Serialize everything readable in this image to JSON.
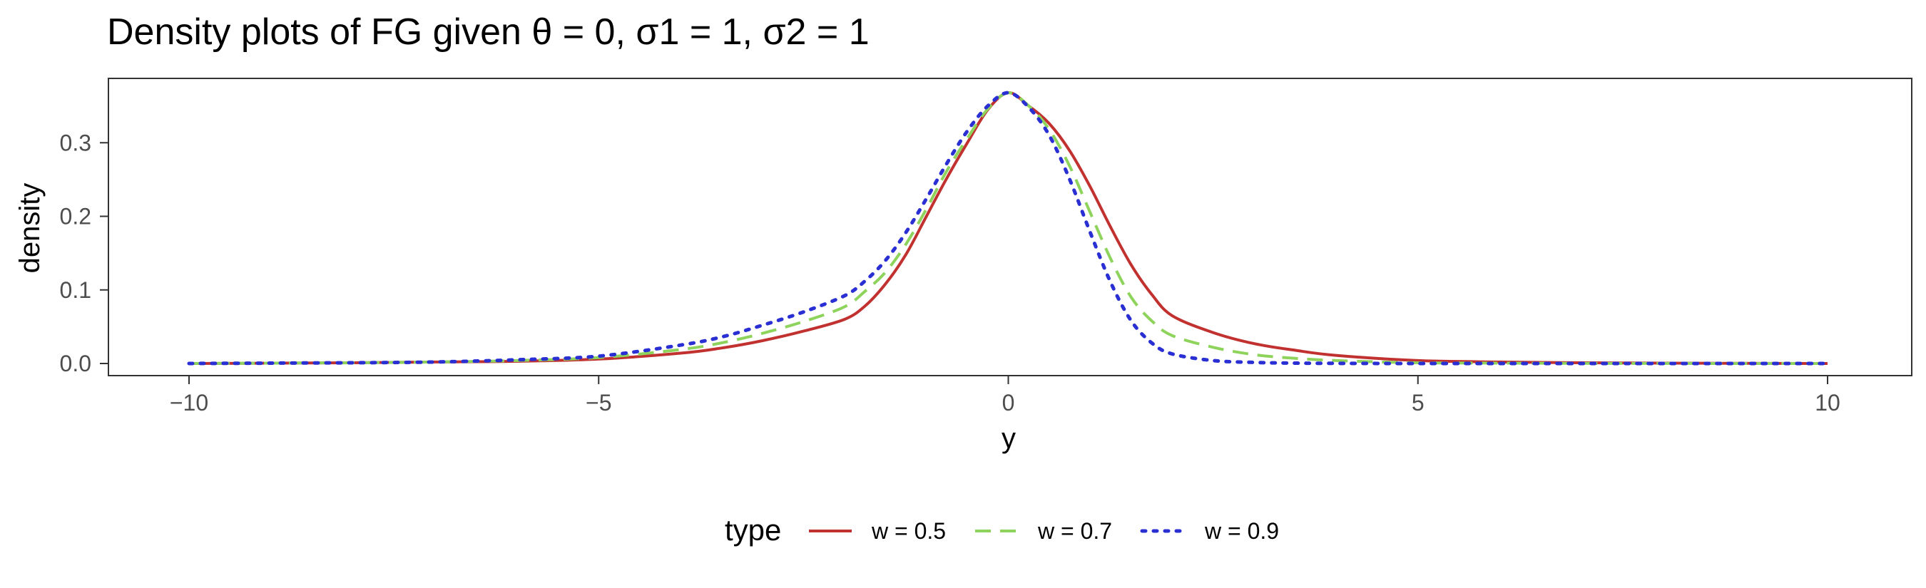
{
  "chart_data": {
    "type": "line",
    "title": "Density plots of FG given θ = 0, σ1 = 1, σ2 = 1",
    "xlabel": "y",
    "ylabel": "density",
    "xlim": [
      -10,
      10
    ],
    "ylim": [
      0,
      0.37
    ],
    "x_ticks": [
      -10,
      -5,
      0,
      5,
      10
    ],
    "x_tick_labels": [
      "−10",
      "−5",
      "0",
      "5",
      "10"
    ],
    "y_ticks": [
      0.0,
      0.1,
      0.2,
      0.3
    ],
    "y_tick_labels": [
      "0.0",
      "0.1",
      "0.2",
      "0.3"
    ],
    "grid": false,
    "legend": {
      "title": "type",
      "position": "bottom"
    },
    "x": [
      -10,
      -9,
      -8,
      -7,
      -6,
      -5,
      -4,
      -3.5,
      -3,
      -2.5,
      -2,
      -1.75,
      -1.5,
      -1.25,
      -1,
      -0.75,
      -0.5,
      -0.25,
      0,
      0.25,
      0.5,
      0.75,
      1,
      1.25,
      1.5,
      1.75,
      2,
      2.5,
      3,
      3.5,
      4,
      5,
      6,
      7,
      8,
      9,
      10
    ],
    "series": [
      {
        "name": "w = 0.5",
        "color": "#c0312f",
        "dash": "solid",
        "values": [
          0.0,
          0.0005,
          0.001,
          0.002,
          0.003,
          0.006,
          0.014,
          0.021,
          0.031,
          0.044,
          0.06,
          0.078,
          0.108,
          0.148,
          0.2,
          0.252,
          0.3,
          0.345,
          0.368,
          0.35,
          0.326,
          0.289,
          0.24,
          0.185,
          0.134,
          0.094,
          0.065,
          0.042,
          0.027,
          0.018,
          0.011,
          0.004,
          0.002,
          0.001,
          0.0005,
          0.0002,
          0.0
        ]
      },
      {
        "name": "w = 0.7",
        "color": "#8ed35c",
        "dash": "dashed",
        "values": [
          0.0,
          0.0005,
          0.001,
          0.002,
          0.004,
          0.008,
          0.019,
          0.028,
          0.041,
          0.057,
          0.077,
          0.098,
          0.124,
          0.162,
          0.21,
          0.262,
          0.306,
          0.346,
          0.368,
          0.35,
          0.318,
          0.268,
          0.205,
          0.142,
          0.09,
          0.058,
          0.038,
          0.022,
          0.012,
          0.007,
          0.004,
          0.001,
          0.0005,
          0.0002,
          0.0001,
          0.0,
          0.0
        ]
      },
      {
        "name": "w = 0.9",
        "color": "#2a2fd4",
        "dash": "dotted",
        "values": [
          0.0,
          0.0005,
          0.001,
          0.002,
          0.005,
          0.01,
          0.025,
          0.036,
          0.052,
          0.07,
          0.092,
          0.112,
          0.14,
          0.178,
          0.224,
          0.272,
          0.316,
          0.35,
          0.368,
          0.348,
          0.31,
          0.25,
          0.178,
          0.11,
          0.058,
          0.028,
          0.013,
          0.004,
          0.0015,
          0.0005,
          0.0002,
          0.0,
          0.0,
          0.0,
          0.0,
          0.0,
          0.0
        ]
      }
    ]
  }
}
